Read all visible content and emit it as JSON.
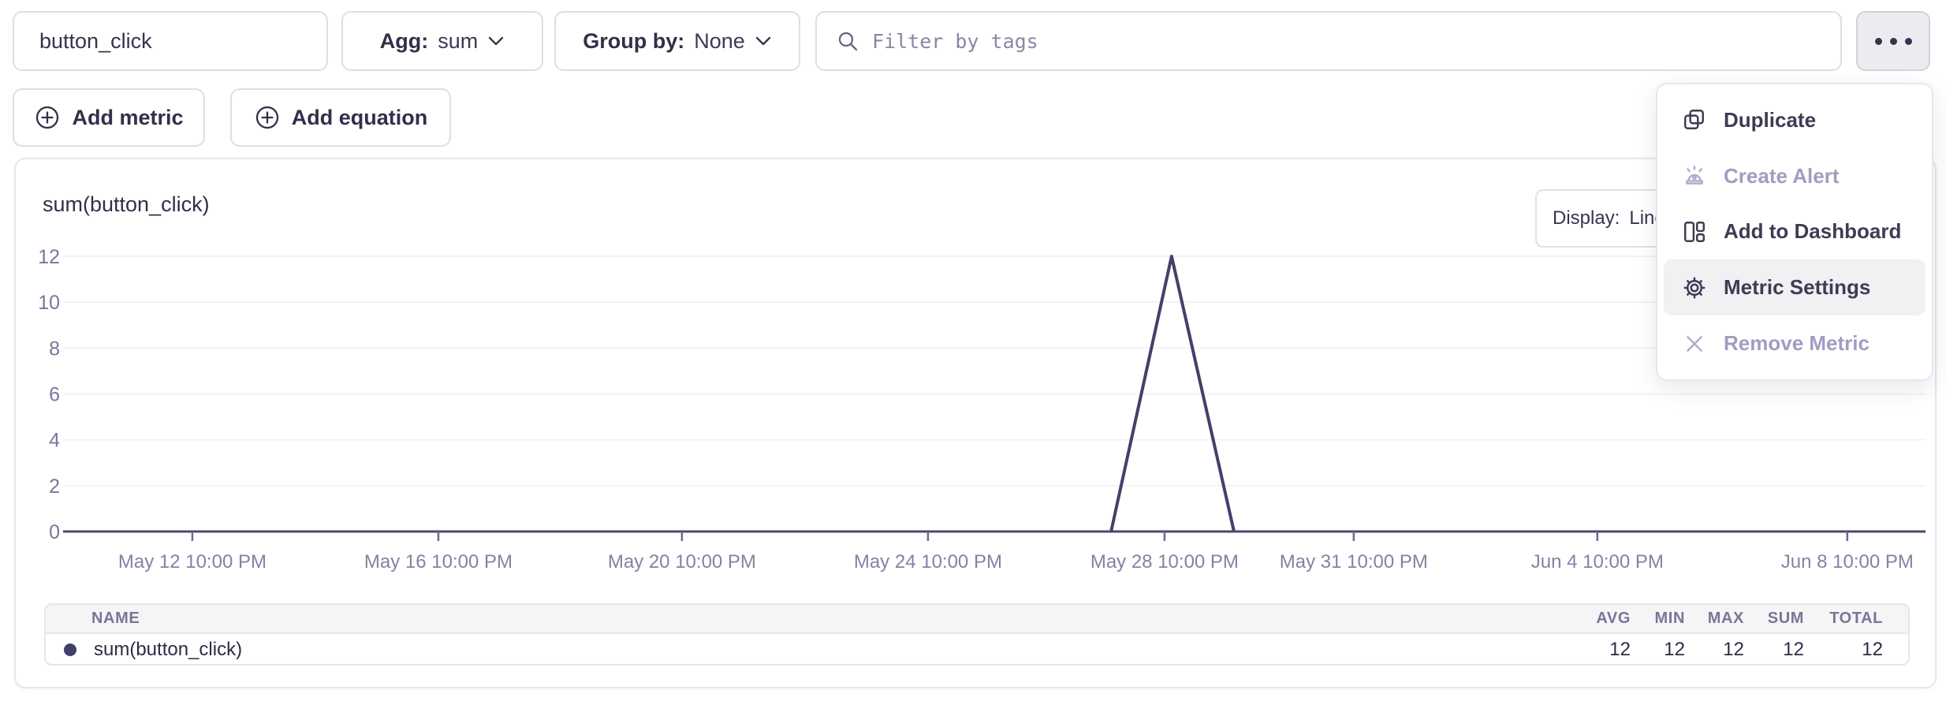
{
  "toolbar": {
    "metric_input": {
      "value": "button_click"
    },
    "agg": {
      "label": "Agg:",
      "value": "sum"
    },
    "group_by": {
      "label": "Group by:",
      "value": "None"
    },
    "filter": {
      "placeholder": "Filter by tags"
    }
  },
  "actions": {
    "add_metric": "Add metric",
    "add_equation": "Add equation"
  },
  "menu": {
    "items": [
      {
        "label": "Duplicate",
        "icon": "duplicate-icon",
        "disabled": false,
        "highlighted": false
      },
      {
        "label": "Create Alert",
        "icon": "alert-icon",
        "disabled": true,
        "highlighted": false
      },
      {
        "label": "Add to Dashboard",
        "icon": "dashboard-icon",
        "disabled": false,
        "highlighted": false
      },
      {
        "label": "Metric Settings",
        "icon": "gear-icon",
        "disabled": false,
        "highlighted": true
      },
      {
        "label": "Remove Metric",
        "icon": "x-icon",
        "disabled": true,
        "highlighted": false
      }
    ]
  },
  "panel": {
    "title": "sum(button_click)",
    "display": {
      "label": "Display:",
      "value": "Line"
    }
  },
  "chart_data": {
    "type": "line",
    "title": "sum(button_click)",
    "ylim": [
      0,
      12
    ],
    "y_ticks": [
      0,
      2,
      4,
      6,
      8,
      10,
      12
    ],
    "grid": "horizontal",
    "legend_position": "table-below",
    "x_ticks": [
      {
        "label": "May 12 10:00 PM",
        "pos": 0.0694
      },
      {
        "label": "May 16 10:00 PM",
        "pos": 0.2015
      },
      {
        "label": "May 20 10:00 PM",
        "pos": 0.3323
      },
      {
        "label": "May 24 10:00 PM",
        "pos": 0.4644
      },
      {
        "label": "May 28 10:00 PM",
        "pos": 0.5914
      },
      {
        "label": "May 31 10:00 PM",
        "pos": 0.693
      },
      {
        "label": "Jun 4 10:00 PM",
        "pos": 0.8238
      },
      {
        "label": "Jun 8 10:00 PM",
        "pos": 0.958
      }
    ],
    "series": [
      {
        "name": "sum(button_click)",
        "color": "#414169",
        "points_frac": [
          {
            "x": 0.5627,
            "y": 0
          },
          {
            "x": 0.5952,
            "y": 12
          },
          {
            "x": 0.6287,
            "y": 0
          }
        ]
      }
    ]
  },
  "summary_table": {
    "columns": [
      "NAME",
      "AVG",
      "MIN",
      "MAX",
      "SUM",
      "TOTAL"
    ],
    "rows": [
      {
        "name": "sum(button_click)",
        "avg": "12",
        "min": "12",
        "max": "12",
        "sum": "12",
        "total": "12",
        "color": "#3f3f68"
      }
    ]
  },
  "colors": {
    "line": "#414169",
    "axis_label": "#8a7fa3",
    "menu_highlight_bg": "#f1f0f3",
    "disabled_text": "#a49bc0",
    "border": "#dfdde7"
  }
}
